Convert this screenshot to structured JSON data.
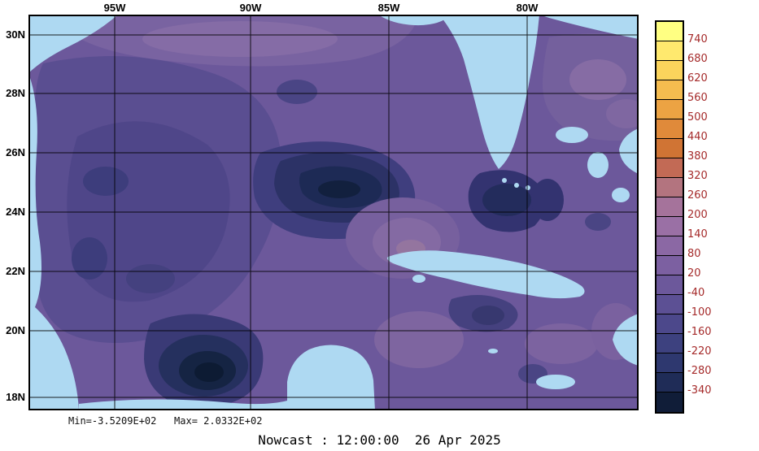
{
  "figure": {
    "caption": "Nowcast : 12:00:00  26 Apr 2025",
    "stats_line": "Min=-3.5209E+02   Max= 2.0332E+02",
    "background": "#ffffff"
  },
  "axes": {
    "lon_ticks": [
      "95W",
      "90W",
      "85W",
      "80W"
    ],
    "lat_ticks": [
      "30N",
      "28N",
      "26N",
      "24N",
      "22N",
      "20N",
      "18N"
    ]
  },
  "colorbar": {
    "labels_top_to_bottom": [
      "740",
      "680",
      "620",
      "560",
      "500",
      "440",
      "380",
      "320",
      "260",
      "200",
      "140",
      "80",
      "20",
      "-40",
      "-100",
      "-160",
      "-220",
      "-280",
      "-340"
    ],
    "segment_colors_top_to_bottom": [
      "#ffff82",
      "#ffe96e",
      "#fbd45c",
      "#f5bc4f",
      "#eca343",
      "#e08a3a",
      "#d07434",
      "#c26a55",
      "#b3747f",
      "#a5739b",
      "#9a70a5",
      "#8b68a4",
      "#7c60a1",
      "#6c589b",
      "#5c5094",
      "#4c488b",
      "#3d417f",
      "#2e386f",
      "#1f2c57",
      "#101d38"
    ],
    "label_color": "#a52a2a"
  },
  "chart_data": {
    "type": "heatmap",
    "title": "Nowcast : 12:00:00  26 Apr 2025",
    "region": "Gulf of Mexico and northwest Caribbean filled-contour field with land masked in light blue",
    "x_ticks": [
      "95W",
      "90W",
      "85W",
      "80W"
    ],
    "y_ticks": [
      "30N",
      "28N",
      "26N",
      "24N",
      "22N",
      "20N",
      "18N"
    ],
    "value_min": -352.09,
    "value_max": 203.32,
    "min_label": "Min=-3.5209E+02",
    "max_label": "Max= 2.0332E+02",
    "contour_levels": [
      -340,
      -280,
      -220,
      -160,
      -100,
      -40,
      20,
      80,
      140,
      200,
      260,
      320,
      380,
      440,
      500,
      560,
      620,
      680,
      740
    ],
    "palette_top_to_bottom": [
      "#ffff82",
      "#ffe96e",
      "#fbd45c",
      "#f5bc4f",
      "#eca343",
      "#e08a3a",
      "#d07434",
      "#c26a55",
      "#b3747f",
      "#a5739b",
      "#9a70a5",
      "#8b68a4",
      "#7c60a1",
      "#6c589b",
      "#5c5094",
      "#4c488b",
      "#3d417f",
      "#2e386f",
      "#1f2c57",
      "#101d38"
    ],
    "land_color": "#aed9f2",
    "observations": [
      {
        "feature": "strong negative anomaly eddy in central Gulf near 88W 25N",
        "approx_value": -300
      },
      {
        "feature": "strong negative anomaly in Bay of Campeche near 94W 19.5N",
        "approx_value": -320
      },
      {
        "feature": "negative anomaly north of Cuba near 83W 24N",
        "approx_value": -250
      },
      {
        "feature": "broad mid-purple field (slightly negative) over most of basin",
        "approx_value": -40
      },
      {
        "feature": "lighter mauve (weakly positive) along northern shelf and Atlantic side",
        "approx_value": 60
      }
    ]
  }
}
